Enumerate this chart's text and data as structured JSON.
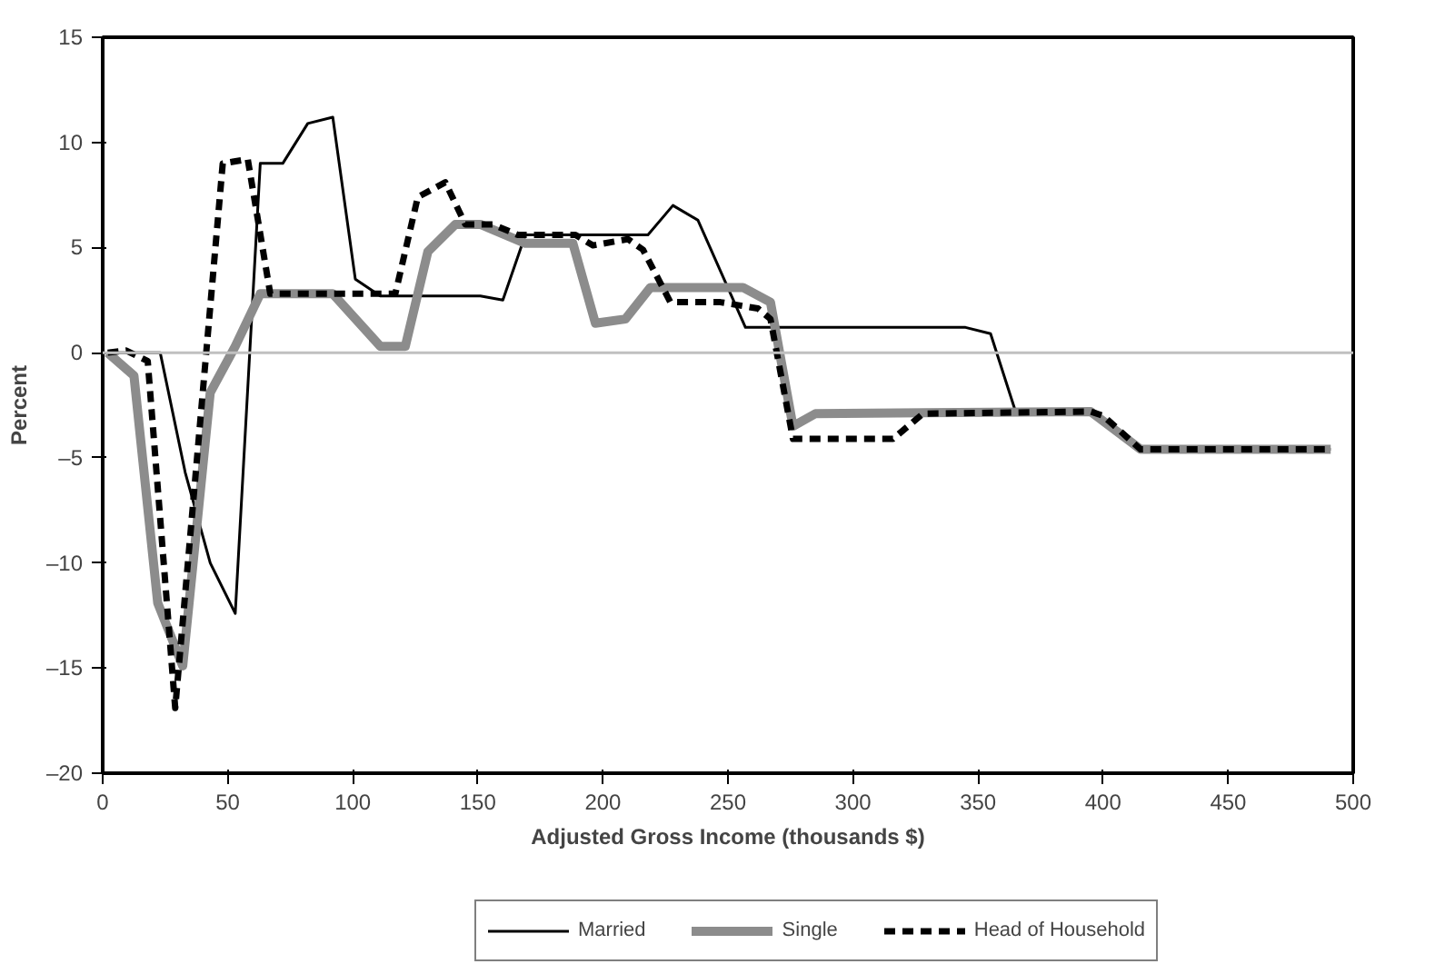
{
  "chart_data": {
    "type": "line",
    "xlabel": "Adjusted Gross Income (thousands $)",
    "ylabel": "Percent",
    "xlim": [
      0,
      500
    ],
    "ylim": [
      -20,
      15
    ],
    "xticks": [
      0,
      50,
      100,
      150,
      200,
      250,
      300,
      350,
      400,
      450,
      500
    ],
    "yticks": [
      {
        "value": -20,
        "label": "–20"
      },
      {
        "value": -15,
        "label": "–15"
      },
      {
        "value": -10,
        "label": "–10"
      },
      {
        "value": -5,
        "label": "–5"
      },
      0,
      5,
      10,
      15
    ],
    "grid": false,
    "legend": "bottom",
    "marker": "none",
    "ref_lines": [
      {
        "axis": "y",
        "value": 0,
        "label": null,
        "color": "#c0c0c0"
      }
    ],
    "series": [
      {
        "name": "Married",
        "color": "#000000",
        "line_style": "solid",
        "x": [
          2,
          23,
          33,
          43,
          53,
          63,
          72,
          82,
          92,
          101,
          111,
          151,
          160,
          169,
          218,
          228,
          238,
          257,
          345,
          355,
          365,
          395,
          415,
          491
        ],
        "values": [
          0,
          0,
          -5.7,
          -10,
          -12.4,
          9.0,
          9.0,
          10.9,
          11.2,
          3.5,
          2.7,
          2.7,
          2.5,
          5.6,
          5.6,
          7.0,
          6.3,
          1.2,
          1.2,
          0.9,
          -2.8,
          -2.8,
          -4.6,
          -4.6
        ]
      },
      {
        "name": "Single",
        "color": "#8c8c8c",
        "line_style": "solid",
        "x": [
          2,
          12.5,
          22,
          32,
          43,
          53,
          63,
          92,
          111,
          121,
          130,
          141,
          151,
          169,
          188,
          197,
          209,
          219,
          256,
          267,
          276,
          285,
          395,
          415,
          491
        ],
        "values": [
          0,
          -1.1,
          -11.9,
          -14.9,
          -1.9,
          0.3,
          2.8,
          2.8,
          0.3,
          0.3,
          4.8,
          6.1,
          6.1,
          5.2,
          5.2,
          1.4,
          1.6,
          3.1,
          3.1,
          2.4,
          -3.5,
          -2.9,
          -2.8,
          -4.6,
          -4.6
        ]
      },
      {
        "name": "Head of Household",
        "color": "#000000",
        "line_style": "dashed",
        "x": [
          2,
          9.4,
          18,
          29,
          48,
          58,
          67,
          117,
          126,
          137,
          145,
          156,
          166,
          189,
          196,
          210,
          216,
          227,
          247,
          262,
          267,
          276,
          316,
          328,
          395,
          400,
          415,
          491
        ],
        "values": [
          0,
          0.1,
          -0.4,
          -16.9,
          9.0,
          9.2,
          2.8,
          2.8,
          7.4,
          8.1,
          6.1,
          6.1,
          5.6,
          5.6,
          5.1,
          5.4,
          4.9,
          2.4,
          2.4,
          2.1,
          1.6,
          -4.1,
          -4.1,
          -2.9,
          -2.8,
          -3.0,
          -4.6,
          -4.6
        ]
      }
    ]
  }
}
